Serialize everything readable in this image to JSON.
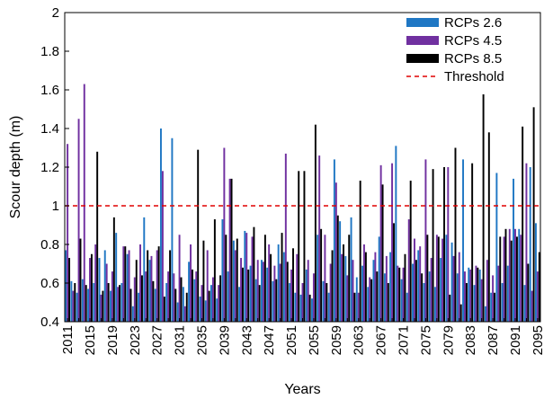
{
  "chart_data": {
    "type": "bar",
    "title": "",
    "xlabel": "Years",
    "ylabel": "Scour depth (m)",
    "ylim": [
      0.4,
      2
    ],
    "yticks": [
      "0.4",
      "0.6",
      "0.8",
      "1",
      "1.2",
      "1.4",
      "1.6",
      "1.8",
      "2"
    ],
    "x_start": 2011,
    "x_end": 2095,
    "xtick_labels": [
      "2011",
      "2015",
      "2019",
      "2023",
      "2027",
      "2031",
      "2035",
      "2039",
      "2043",
      "2047",
      "2051",
      "2055",
      "2059",
      "2063",
      "2067",
      "2071",
      "2075",
      "2079",
      "2083",
      "2087",
      "2091",
      "2095"
    ],
    "grid": false,
    "legend_position": "top-right",
    "series": [
      {
        "name": "RCPs 2.6",
        "color": "#1f77c4",
        "values": [
          0.77,
          0.61,
          0.55,
          0.62,
          0.57,
          0.6,
          0.73,
          0.77,
          0.56,
          0.86,
          0.6,
          0.75,
          0.48,
          0.55,
          0.94,
          0.72,
          0.57,
          1.4,
          0.6,
          1.35,
          0.5,
          0.58,
          0.71,
          0.62,
          0.53,
          0.51,
          0.59,
          0.52,
          0.93,
          0.66,
          0.82,
          0.58,
          0.87,
          0.69,
          0.62,
          0.72,
          0.68,
          0.61,
          0.8,
          0.76,
          0.6,
          0.55,
          0.54,
          0.67,
          0.52,
          0.85,
          0.61,
          0.55,
          1.24,
          0.92,
          0.74,
          0.94,
          0.63,
          0.69,
          0.58,
          0.72,
          0.84,
          0.65,
          0.76,
          1.31,
          0.62,
          0.55,
          0.7,
          0.77,
          0.6,
          0.66,
          0.58,
          0.73,
          0.85,
          0.81,
          0.65,
          1.24,
          0.68,
          0.59,
          0.67,
          0.48,
          0.55,
          1.17,
          0.6,
          0.69,
          1.14,
          0.88,
          0.59,
          1.2,
          0.91
        ]
      },
      {
        "name": "RCPs 4.5",
        "color": "#7030a0",
        "values": [
          1.32,
          0.56,
          1.45,
          1.63,
          0.73,
          0.8,
          0.54,
          0.7,
          0.66,
          0.58,
          0.79,
          0.77,
          0.63,
          0.8,
          0.66,
          0.74,
          0.77,
          1.18,
          0.66,
          0.65,
          0.85,
          0.48,
          0.8,
          0.66,
          0.59,
          0.77,
          0.63,
          0.59,
          1.3,
          1.14,
          0.77,
          0.73,
          0.86,
          0.84,
          0.72,
          0.71,
          0.8,
          0.69,
          0.7,
          1.27,
          0.67,
          0.75,
          0.6,
          0.72,
          0.65,
          1.26,
          0.85,
          0.7,
          1.12,
          0.75,
          0.64,
          0.72,
          0.55,
          0.8,
          0.63,
          0.76,
          1.21,
          0.74,
          1.22,
          0.69,
          0.68,
          0.93,
          0.83,
          0.79,
          1.24,
          0.73,
          0.85,
          0.83,
          1.2,
          0.74,
          0.76,
          0.66,
          0.67,
          0.69,
          0.62,
          0.72,
          0.64,
          0.69,
          0.84,
          0.88,
          0.88,
          0.85,
          1.22,
          0.56,
          0.66
        ]
      },
      {
        "name": "RCPs 8.5",
        "color": "#000000",
        "values": [
          0.73,
          0.6,
          0.83,
          0.59,
          0.75,
          1.28,
          0.56,
          0.6,
          0.94,
          0.59,
          0.79,
          0.57,
          0.72,
          0.64,
          0.77,
          0.61,
          0.79,
          0.53,
          0.77,
          0.57,
          0.63,
          0.55,
          0.67,
          1.29,
          0.82,
          0.56,
          0.93,
          0.64,
          0.85,
          1.14,
          0.83,
          0.68,
          0.67,
          0.89,
          0.59,
          0.85,
          0.75,
          0.62,
          0.86,
          0.71,
          0.78,
          1.18,
          1.18,
          0.54,
          1.42,
          0.88,
          0.6,
          0.77,
          0.95,
          0.8,
          0.85,
          0.55,
          1.13,
          0.76,
          0.62,
          0.66,
          1.11,
          0.6,
          0.91,
          0.68,
          0.75,
          1.13,
          0.72,
          0.65,
          0.85,
          1.19,
          0.84,
          1.2,
          0.54,
          1.3,
          0.49,
          0.6,
          1.22,
          0.68,
          1.58,
          1.38,
          0.55,
          0.84,
          0.88,
          0.82,
          0.84,
          1.41,
          0.7,
          1.51,
          0.76
        ]
      }
    ],
    "threshold": {
      "name": "Threshold",
      "value": 1.0,
      "color": "#e00000"
    }
  }
}
